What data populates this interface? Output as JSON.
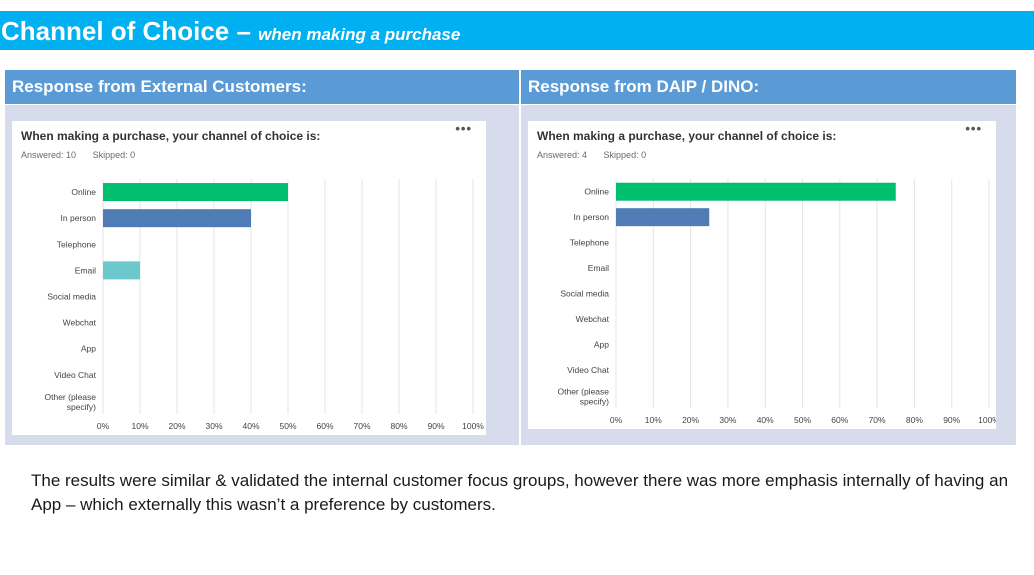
{
  "title": {
    "main": "Channel of Choice –",
    "sub": "when making a purchase"
  },
  "panels": [
    {
      "header": "Response from External Customers:",
      "question": "When making a purchase, your channel of choice is:",
      "answered": "Answered: 10",
      "skipped": "Skipped: 0",
      "menu": "•••"
    },
    {
      "header": "Response from DAIP / DINO:",
      "question": "When making a purchase, your channel of choice is:",
      "answered": "Answered: 4",
      "skipped": "Skipped: 0",
      "menu": "•••"
    }
  ],
  "note": "The results were similar & validated the internal customer focus groups, however there was more emphasis internally of having an App – which externally this wasn’t a preference by customers.",
  "colors": {
    "online": "#00bf6f",
    "in_person": "#507cb6",
    "email": "#6bc8cd",
    "grid": "#e4e4e4"
  },
  "chart_data": [
    {
      "type": "bar",
      "orientation": "horizontal",
      "title": "When making a purchase, your channel of choice is:",
      "categories": [
        "Online",
        "In person",
        "Telephone",
        "Email",
        "Social media",
        "Webchat",
        "App",
        "Video Chat",
        "Other (please specify)"
      ],
      "values": [
        50,
        40,
        0,
        10,
        0,
        0,
        0,
        0,
        0
      ],
      "bar_colors": [
        "#00bf6f",
        "#507cb6",
        "#507cb6",
        "#6bc8cd",
        "#507cb6",
        "#507cb6",
        "#507cb6",
        "#507cb6",
        "#507cb6"
      ],
      "xticks": [
        "0%",
        "10%",
        "20%",
        "30%",
        "40%",
        "50%",
        "60%",
        "70%",
        "80%",
        "90%",
        "100%"
      ],
      "xlim": [
        0,
        100
      ],
      "grid": true
    },
    {
      "type": "bar",
      "orientation": "horizontal",
      "title": "When making a purchase, your channel of choice is:",
      "categories": [
        "Online",
        "In person",
        "Telephone",
        "Email",
        "Social media",
        "Webchat",
        "App",
        "Video Chat",
        "Other (please specify)"
      ],
      "values": [
        75,
        25,
        0,
        0,
        0,
        0,
        0,
        0,
        0
      ],
      "bar_colors": [
        "#00bf6f",
        "#507cb6",
        "#507cb6",
        "#507cb6",
        "#507cb6",
        "#507cb6",
        "#507cb6",
        "#507cb6",
        "#507cb6"
      ],
      "xticks": [
        "0%",
        "10%",
        "20%",
        "30%",
        "40%",
        "50%",
        "60%",
        "70%",
        "80%",
        "90%",
        "100%"
      ],
      "xlim": [
        0,
        100
      ],
      "grid": true
    }
  ]
}
